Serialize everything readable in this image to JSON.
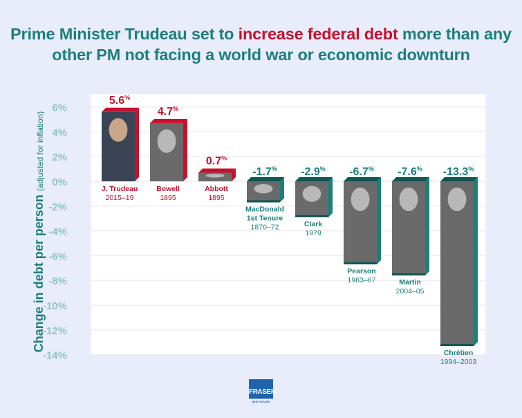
{
  "title": {
    "part1": "Prime Minister Trudeau set to ",
    "highlight": "increase federal debt",
    "part2": " more than any other PM not facing a world war or economic downturn"
  },
  "colors": {
    "teal": "#1b7f7c",
    "red": "#c8102e",
    "background": "#e9ecfb",
    "tick_label": "#8fc4c6"
  },
  "chart_data": {
    "type": "bar",
    "ylabel": "Change in debt per person",
    "ylabel_note": "(adjusted for inflation)",
    "ylim": [
      -14,
      6
    ],
    "yticks": [
      6,
      4,
      2,
      0,
      -2,
      -4,
      -6,
      -8,
      -10,
      -12,
      -14
    ],
    "ytick_labels": [
      "6%",
      "4%",
      "2%",
      "0%",
      "-2%",
      "-4%",
      "-6%",
      "-8%",
      "-10%",
      "-12%",
      "-14%"
    ],
    "grid": true,
    "bars": [
      {
        "name": "J. Trudeau",
        "extra": "",
        "years": "2015–19",
        "value": 5.6,
        "label": "5.6"
      },
      {
        "name": "Bowell",
        "extra": "",
        "years": "1895",
        "value": 4.7,
        "label": "4.7"
      },
      {
        "name": "Abbott",
        "extra": "",
        "years": "1895",
        "value": 0.7,
        "label": "0.7"
      },
      {
        "name": "MacDonald",
        "extra": "1st Tenure",
        "years": "1870–72",
        "value": -1.7,
        "label": "-1.7"
      },
      {
        "name": "Clark",
        "extra": "",
        "years": "1979",
        "value": -2.9,
        "label": "-2.9"
      },
      {
        "name": "Pearson",
        "extra": "",
        "years": "1963–67",
        "value": -6.7,
        "label": "-6.7"
      },
      {
        "name": "Martin",
        "extra": "",
        "years": "2004–05",
        "value": -7.6,
        "label": "-7.6"
      },
      {
        "name": "Chrétien",
        "extra": "",
        "years": "1994–2003",
        "value": -13.3,
        "label": "-13.3"
      }
    ],
    "value_suffix": "%"
  },
  "logo": {
    "main": "FRASER",
    "sub": "INSTITUTE"
  }
}
